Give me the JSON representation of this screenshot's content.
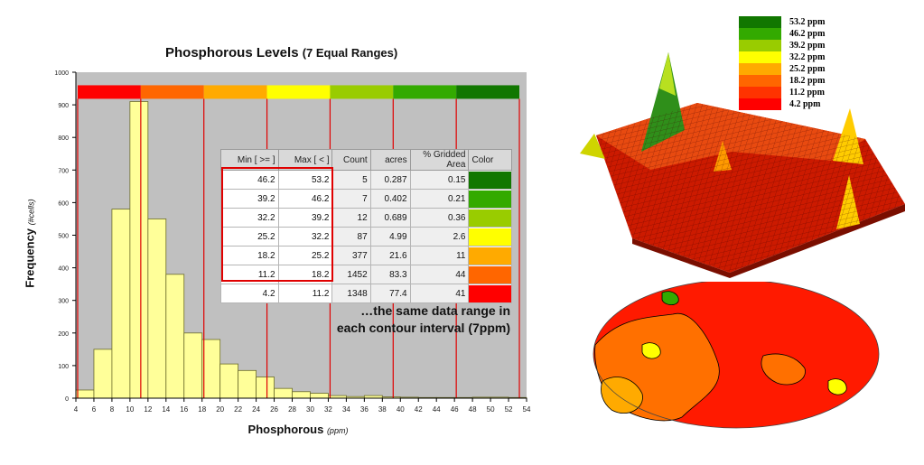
{
  "chart_data": {
    "type": "bar",
    "title": "Phosphorous Levels",
    "subtitle": "(7 Equal Ranges)",
    "xlabel": "Phosphorous",
    "xlabel_unit": "(ppm)",
    "ylabel": "Frequency",
    "ylabel_unit": "(#cells)",
    "xlim": [
      4,
      54
    ],
    "ylim": [
      0,
      1000
    ],
    "x_ticks": [
      4,
      6,
      8,
      10,
      12,
      14,
      16,
      18,
      20,
      22,
      24,
      26,
      28,
      30,
      32,
      34,
      36,
      38,
      40,
      42,
      44,
      46,
      48,
      50,
      52,
      54
    ],
    "y_ticks": [
      0,
      100,
      200,
      300,
      400,
      500,
      600,
      700,
      800,
      900,
      1000
    ],
    "bin_width": 2,
    "bins": [
      {
        "x": 4,
        "value": 25
      },
      {
        "x": 6,
        "value": 150
      },
      {
        "x": 8,
        "value": 580
      },
      {
        "x": 10,
        "value": 910
      },
      {
        "x": 12,
        "value": 550
      },
      {
        "x": 14,
        "value": 380
      },
      {
        "x": 16,
        "value": 200
      },
      {
        "x": 18,
        "value": 180
      },
      {
        "x": 20,
        "value": 105
      },
      {
        "x": 22,
        "value": 85
      },
      {
        "x": 24,
        "value": 65
      },
      {
        "x": 26,
        "value": 30
      },
      {
        "x": 28,
        "value": 20
      },
      {
        "x": 30,
        "value": 15
      },
      {
        "x": 32,
        "value": 8
      },
      {
        "x": 34,
        "value": 5
      },
      {
        "x": 36,
        "value": 8
      },
      {
        "x": 38,
        "value": 4
      },
      {
        "x": 40,
        "value": 3
      },
      {
        "x": 42,
        "value": 2
      },
      {
        "x": 44,
        "value": 2
      },
      {
        "x": 46,
        "value": 2
      },
      {
        "x": 48,
        "value": 3
      },
      {
        "x": 50,
        "value": 3
      },
      {
        "x": 52,
        "value": 2
      }
    ],
    "range_breaks": [
      4.2,
      11.2,
      18.2,
      25.2,
      32.2,
      39.2,
      46.2,
      53.2
    ],
    "range_colors": [
      "#ff0000",
      "#ff6600",
      "#ffaa00",
      "#ffff00",
      "#99cc00",
      "#33aa00",
      "#117700"
    ],
    "bar_color": "#ffff99",
    "plot_bg": "#c0c0c0",
    "grid": false,
    "table": {
      "headers": [
        "Min [ >= ]",
        "Max [ < ]",
        "Count",
        "acres",
        "% Gridded Area",
        "Color"
      ],
      "rows": [
        {
          "min": "46.2",
          "max": "53.2",
          "count": "5",
          "acres": "0.287",
          "pct": "0.15",
          "color": "#117700"
        },
        {
          "min": "39.2",
          "max": "46.2",
          "count": "7",
          "acres": "0.402",
          "pct": "0.21",
          "color": "#33aa00"
        },
        {
          "min": "32.2",
          "max": "39.2",
          "count": "12",
          "acres": "0.689",
          "pct": "0.36",
          "color": "#99cc00"
        },
        {
          "min": "25.2",
          "max": "32.2",
          "count": "87",
          "acres": "4.99",
          "pct": "2.6",
          "color": "#ffff00"
        },
        {
          "min": "18.2",
          "max": "25.2",
          "count": "377",
          "acres": "21.6",
          "pct": "11",
          "color": "#ffaa00"
        },
        {
          "min": "11.2",
          "max": "18.2",
          "count": "1452",
          "acres": "83.3",
          "pct": "44",
          "color": "#ff6600"
        },
        {
          "min": "4.2",
          "max": "11.2",
          "count": "1348",
          "acres": "77.4",
          "pct": "41",
          "color": "#ff0000"
        }
      ]
    },
    "annotation_line1": "…the same data range in",
    "annotation_line2": "each contour interval (7ppm)",
    "legend_position": "top-right",
    "legend": [
      {
        "label": "53.2 ppm",
        "color": "#117700"
      },
      {
        "label": "46.2 ppm",
        "color": "#33aa00"
      },
      {
        "label": "39.2 ppm",
        "color": "#99cc00"
      },
      {
        "label": "32.2 ppm",
        "color": "#ffff00"
      },
      {
        "label": "25.2 ppm",
        "color": "#ffaa00"
      },
      {
        "label": "18.2 ppm",
        "color": "#ff6600"
      },
      {
        "label": "11.2 ppm",
        "color": "#ff3300"
      },
      {
        "label": "4.2 ppm",
        "color": "#ff0000"
      }
    ]
  }
}
